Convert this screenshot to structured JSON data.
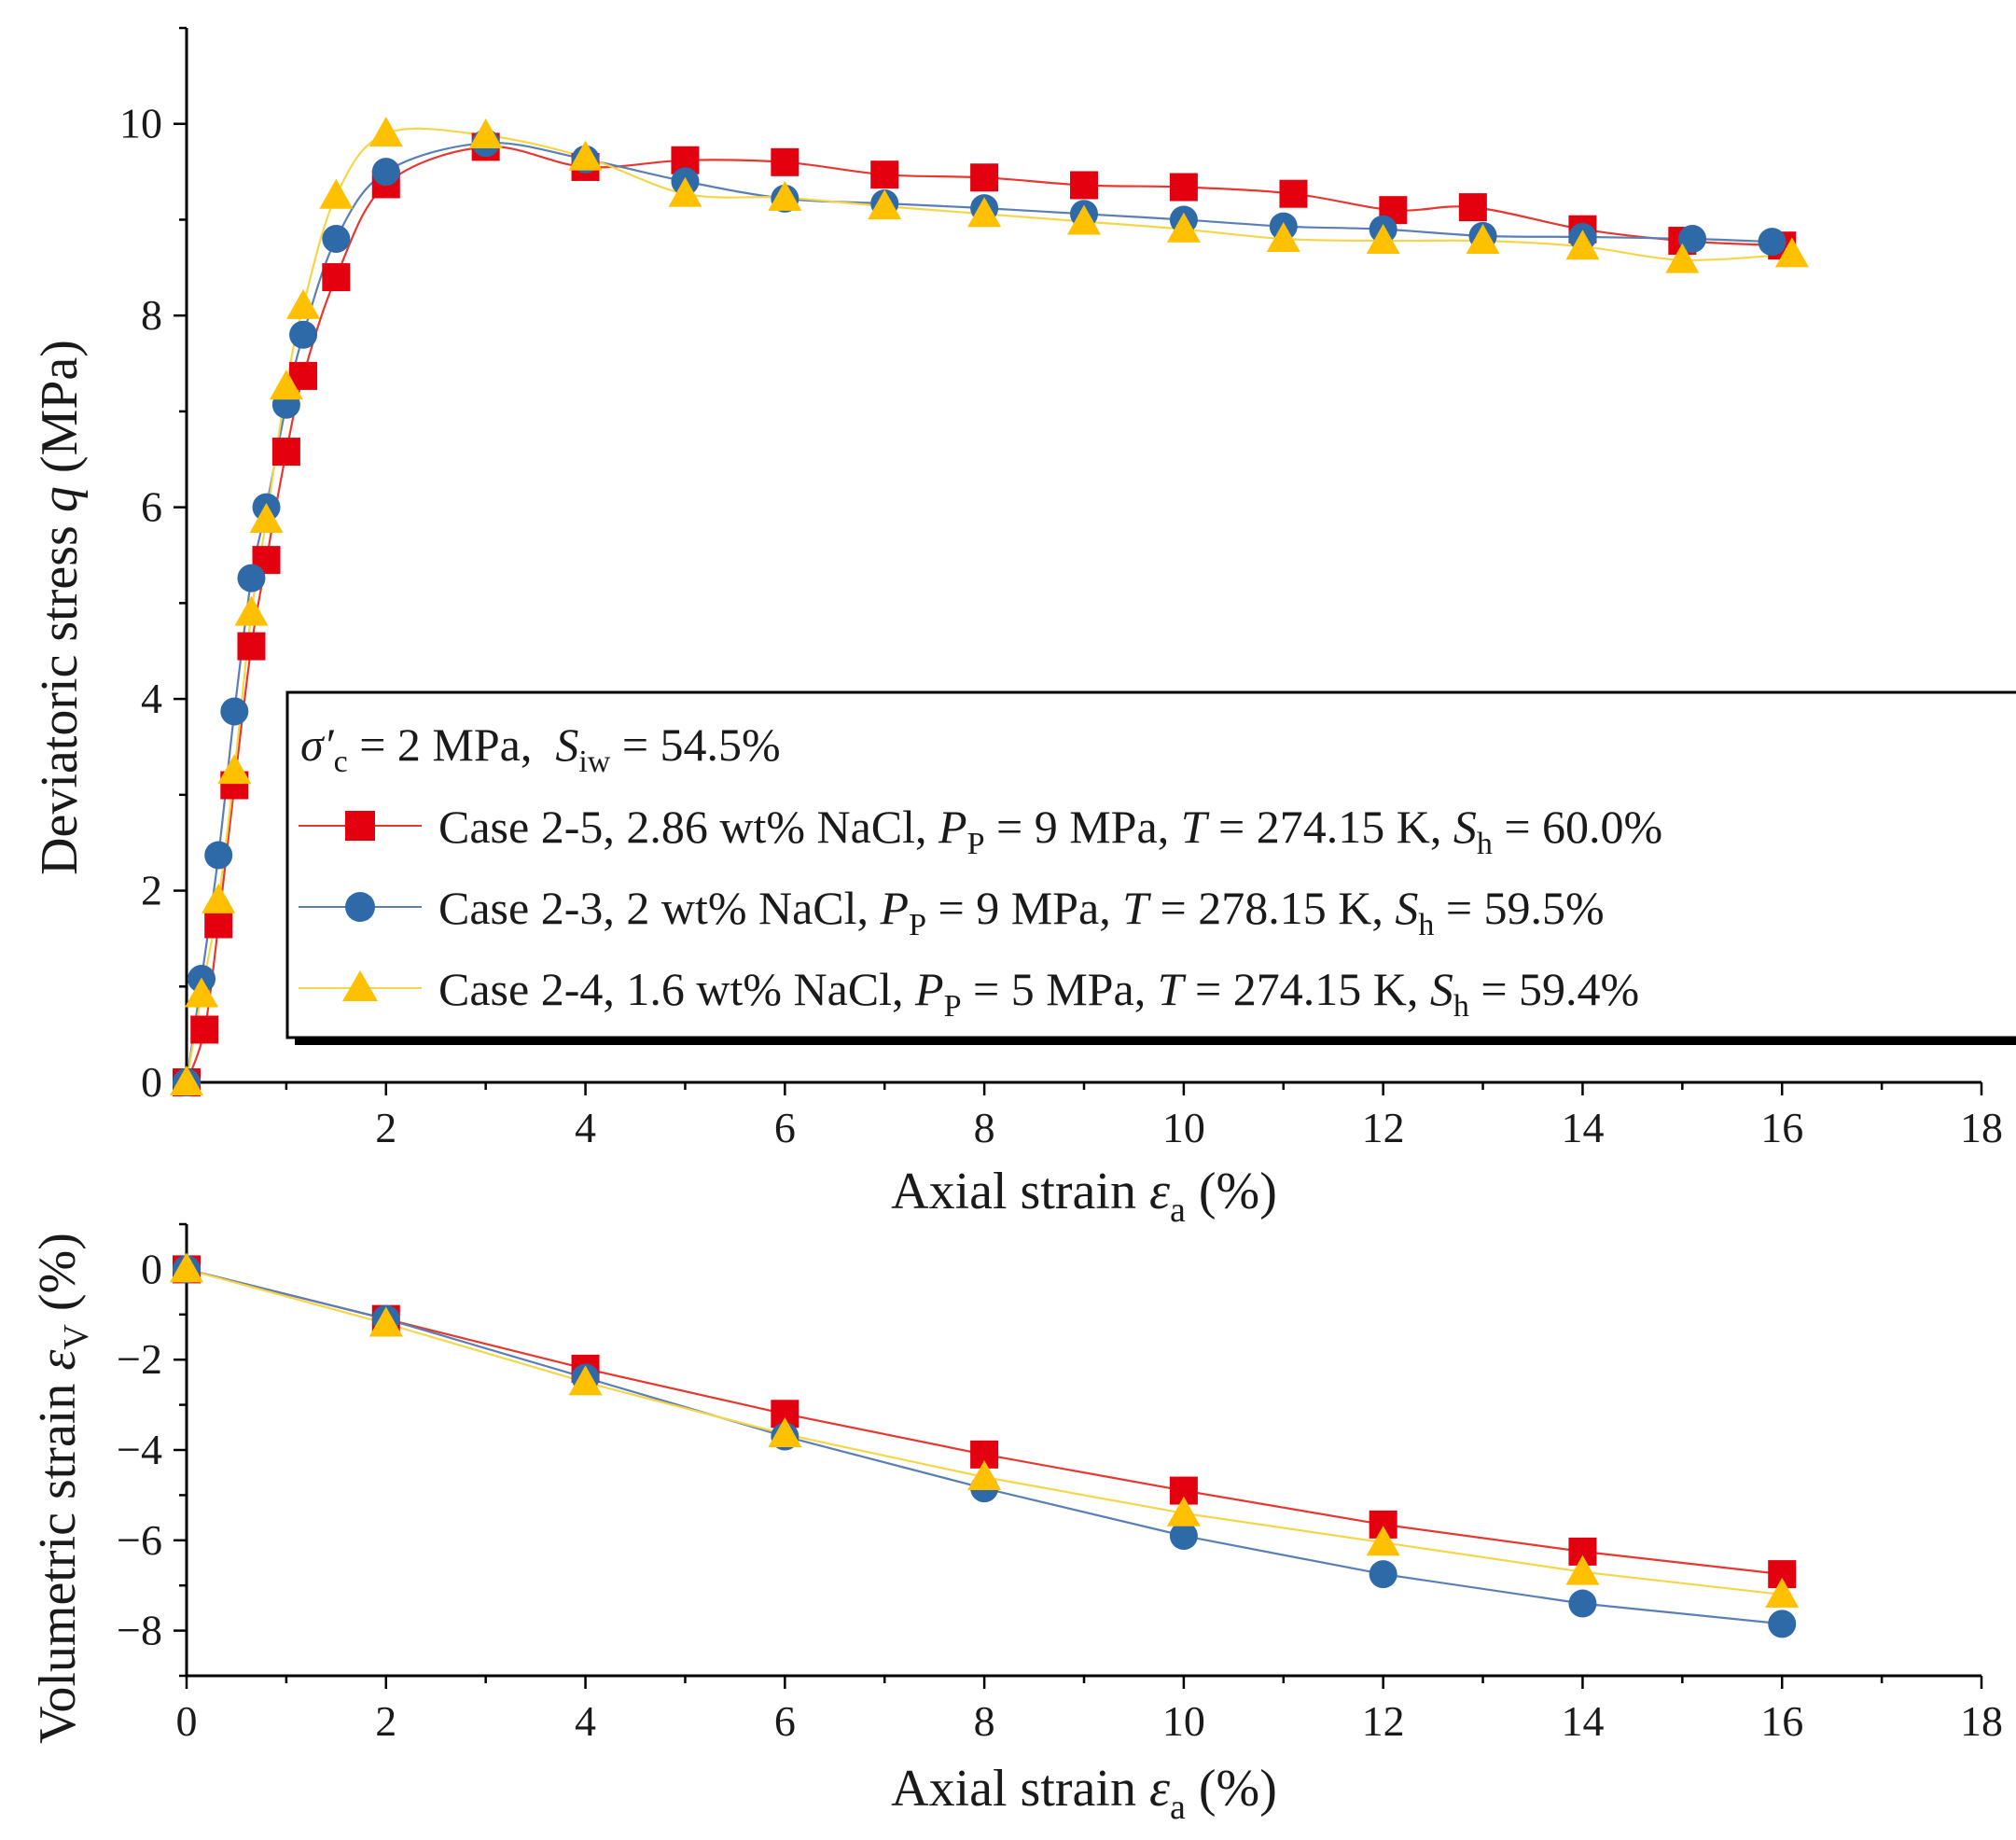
{
  "chart_data": [
    {
      "type": "line",
      "panel": "top",
      "xlabel": "Axial strain",
      "xlabel_symbol": "ε",
      "xlabel_sub": "a",
      "xlabel_unit": "(%)",
      "ylabel": "Deviatoric stress",
      "ylabel_symbol": "q",
      "ylabel_unit": "(MPa)",
      "xlim": [
        0,
        18
      ],
      "ylim": [
        0,
        11
      ],
      "xticks": [
        0,
        2,
        4,
        6,
        8,
        10,
        12,
        14,
        16,
        18
      ],
      "xtick_labels": [
        "2",
        "4",
        "6",
        "8",
        "10",
        "12",
        "14",
        "16",
        "18"
      ],
      "yticks": [
        0,
        2,
        4,
        6,
        8,
        10
      ],
      "ytick_labels": [
        "0",
        "2",
        "4",
        "6",
        "8",
        "10"
      ],
      "legend": {
        "placement": "middle-right",
        "header": {
          "sigma": "σ′",
          "sigma_sub": "c",
          "sigma_text": " = 2 MPa,  ",
          "s": "S",
          "s_sub": "iw",
          "s_text": " = 54.5%"
        }
      },
      "series": [
        {
          "name": "Case 2-5",
          "label_pre": "Case 2-5, 2.86 wt% NaCl, ",
          "label_p": "9 MPa",
          "label_t": "274.15 K",
          "label_sh": "60.0%",
          "color": "#e8372f",
          "marker_color": "#e3000f",
          "marker": "square",
          "x": [
            0,
            0.18,
            0.32,
            0.48,
            0.65,
            0.8,
            1.0,
            1.17,
            1.5,
            2.0,
            3.0,
            4.0,
            5.0,
            6.0,
            7.0,
            8.0,
            9.0,
            10.0,
            11.1,
            12.1,
            12.9,
            14.0,
            15.0,
            16.0
          ],
          "y": [
            0,
            0.55,
            1.65,
            3.1,
            4.55,
            5.45,
            6.58,
            7.37,
            8.4,
            9.37,
            9.76,
            9.55,
            9.62,
            9.6,
            9.47,
            9.44,
            9.36,
            9.34,
            9.27,
            9.1,
            9.13,
            8.9,
            8.78,
            8.73
          ]
        },
        {
          "name": "Case 2-3",
          "label_pre": "Case 2-3, 2 wt% NaCl, ",
          "label_p": "9 MPa",
          "label_t": "278.15 K",
          "label_sh": "59.5%",
          "color": "#5a7fb4",
          "marker_color": "#2e6aa8",
          "marker": "circle",
          "x": [
            0,
            0.15,
            0.32,
            0.48,
            0.65,
            0.8,
            1.0,
            1.17,
            1.5,
            2.0,
            3.0,
            4.0,
            5.0,
            6.0,
            7.0,
            8.0,
            9.0,
            10.0,
            11.0,
            12.0,
            13.0,
            14.0,
            15.1,
            15.9
          ],
          "y": [
            0,
            1.08,
            2.37,
            3.87,
            5.26,
            6.0,
            7.07,
            7.8,
            8.8,
            9.5,
            9.8,
            9.63,
            9.4,
            9.22,
            9.17,
            9.12,
            9.06,
            9.0,
            8.93,
            8.9,
            8.83,
            8.82,
            8.8,
            8.77
          ]
        },
        {
          "name": "Case 2-4",
          "label_pre": "Case 2-4, 1.6 wt% NaCl, ",
          "label_p": "5 MPa",
          "label_t": "274.15 K",
          "label_sh": "59.4%",
          "color": "#f5d64a",
          "marker_color": "#ffc000",
          "marker": "triangle",
          "x": [
            0,
            0.15,
            0.32,
            0.48,
            0.65,
            0.8,
            1.0,
            1.17,
            1.5,
            2.0,
            3.0,
            4.0,
            5.0,
            6.0,
            7.0,
            8.0,
            9.0,
            10.0,
            11.0,
            12.0,
            13.0,
            14.0,
            15.0,
            16.1
          ],
          "y": [
            0,
            0.92,
            1.9,
            3.25,
            4.9,
            5.87,
            7.26,
            8.1,
            9.25,
            9.9,
            9.88,
            9.65,
            9.27,
            9.23,
            9.14,
            9.06,
            8.98,
            8.9,
            8.8,
            8.78,
            8.78,
            8.72,
            8.58,
            8.64
          ]
        }
      ]
    },
    {
      "type": "line",
      "panel": "bottom",
      "xlabel": "Axial strain",
      "xlabel_symbol": "ε",
      "xlabel_sub": "a",
      "xlabel_unit": "(%)",
      "ylabel": "Volumetric strain",
      "ylabel_symbol": "ε",
      "ylabel_sub": "V",
      "ylabel_unit": "(%)",
      "xlim": [
        0,
        18
      ],
      "ylim": [
        -9,
        1
      ],
      "xticks": [
        0,
        2,
        4,
        6,
        8,
        10,
        12,
        14,
        16,
        18
      ],
      "xtick_labels": [
        "0",
        "2",
        "4",
        "6",
        "8",
        "10",
        "12",
        "14",
        "16",
        "18"
      ],
      "yticks": [
        0,
        -2,
        -4,
        -6,
        -8
      ],
      "ytick_labels": [
        "0",
        "−2",
        "−4",
        "−6",
        "−8"
      ],
      "series": [
        {
          "name": "Case 2-5",
          "color": "#e8372f",
          "marker_color": "#e3000f",
          "marker": "square",
          "x": [
            0,
            2,
            4,
            6,
            8,
            10,
            12,
            14,
            16
          ],
          "y": [
            0,
            -1.1,
            -2.2,
            -3.2,
            -4.1,
            -4.9,
            -5.65,
            -6.25,
            -6.75
          ]
        },
        {
          "name": "Case 2-3",
          "color": "#5a7fb4",
          "marker_color": "#2e6aa8",
          "marker": "circle",
          "x": [
            0,
            2,
            4,
            6,
            8,
            10,
            12,
            14,
            16
          ],
          "y": [
            0,
            -1.1,
            -2.4,
            -3.7,
            -4.85,
            -5.9,
            -6.75,
            -7.4,
            -7.85
          ]
        },
        {
          "name": "Case 2-4",
          "color": "#f5d64a",
          "marker_color": "#ffc000",
          "marker": "triangle",
          "x": [
            0,
            2,
            4,
            6,
            8,
            10,
            12,
            14,
            16
          ],
          "y": [
            0,
            -1.2,
            -2.5,
            -3.65,
            -4.6,
            -5.4,
            -6.05,
            -6.7,
            -7.2
          ]
        }
      ]
    }
  ]
}
